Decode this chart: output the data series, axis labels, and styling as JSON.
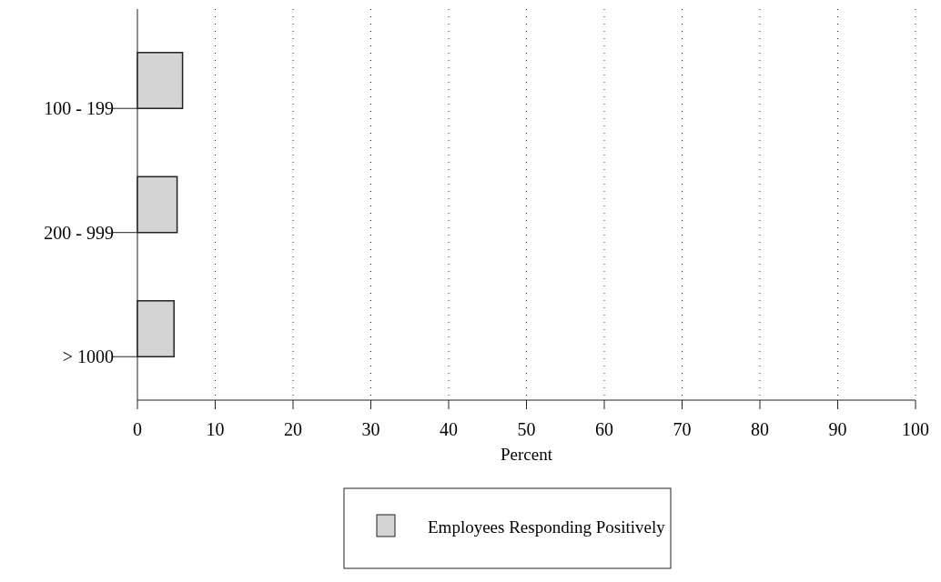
{
  "chart_data": {
    "type": "bar",
    "orientation": "horizontal",
    "xlabel": "Percent",
    "categories": [
      "100 - 199",
      "200 - 999",
      "> 1000"
    ],
    "series": [
      {
        "name": "Employees Responding Positively",
        "color": "#d4d4d4",
        "values": [
          5.8,
          5.1,
          4.7
        ]
      }
    ],
    "xlim": [
      0,
      100
    ],
    "xticks": [
      0,
      10,
      20,
      30,
      40,
      50,
      60,
      70,
      80,
      90,
      100
    ],
    "grid": "x",
    "legend": "bottom"
  }
}
